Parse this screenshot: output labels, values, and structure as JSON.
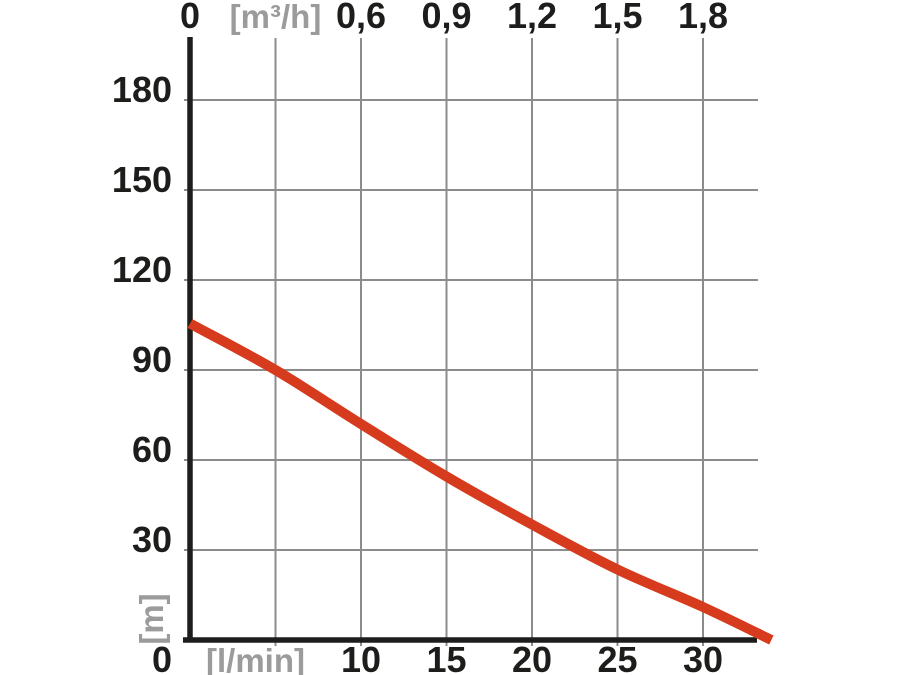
{
  "chart_data": {
    "type": "line",
    "title": "",
    "description": "Pump performance curve: delivery head [m] versus flow rate [l/min] / [m³/h]",
    "grid": true,
    "legend": false,
    "axes": {
      "top_x": {
        "unit": "[m³/h]",
        "range_m3h": [
          0,
          2.04
        ],
        "ticks": [
          {
            "value": 0,
            "label": "0"
          },
          {
            "value": 0.3,
            "label": "[m³/h]",
            "is_unit_label": true
          },
          {
            "value": 0.6,
            "label": "0,6"
          },
          {
            "value": 0.9,
            "label": "0,9"
          },
          {
            "value": 1.2,
            "label": "1,2"
          },
          {
            "value": 1.5,
            "label": "1,5"
          },
          {
            "value": 1.8,
            "label": "1,8"
          }
        ]
      },
      "bottom_x": {
        "unit": "[l/min]",
        "range_lmin": [
          0,
          34
        ],
        "ticks": [
          {
            "value": 5,
            "label": "[l/min]",
            "is_unit_label": true
          },
          {
            "value": 10,
            "label": "10"
          },
          {
            "value": 15,
            "label": "15"
          },
          {
            "value": 20,
            "label": "20"
          },
          {
            "value": 25,
            "label": "25"
          },
          {
            "value": 30,
            "label": "30"
          }
        ]
      },
      "left_y": {
        "unit": "[m]",
        "range_m": [
          0,
          195
        ],
        "ticks": [
          {
            "value": 180,
            "label": "180"
          },
          {
            "value": 150,
            "label": "150"
          },
          {
            "value": 120,
            "label": "120"
          },
          {
            "value": 90,
            "label": "90"
          },
          {
            "value": 60,
            "label": "60"
          },
          {
            "value": 30,
            "label": "30"
          }
        ]
      },
      "origin_label": "0"
    },
    "series": [
      {
        "name": "delivery-head-curve",
        "color": "#d63b1d",
        "points_lmin_m": [
          [
            0,
            105.5
          ],
          [
            5,
            90
          ],
          [
            10,
            72
          ],
          [
            15,
            54.5
          ],
          [
            20,
            38.5
          ],
          [
            25,
            23.5
          ],
          [
            30,
            11
          ],
          [
            34,
            0
          ]
        ]
      }
    ],
    "colors": {
      "axis": "#1d1d1b",
      "grid": "#8c8c8c",
      "tick_text": "#1d1d1b",
      "unit_text": "#9b9b9b",
      "background": "#ffffff"
    }
  }
}
